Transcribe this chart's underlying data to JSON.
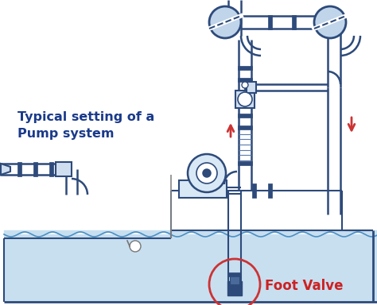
{
  "bg_color": "#ffffff",
  "pipe_color": "#2d4a7a",
  "pipe_lw": 2.5,
  "pipe_inner": "#c8d8ea",
  "water_color": "#c8dff0",
  "water_edge": "#4a90c4",
  "arrow_color": "#cc3333",
  "title_color": "#1a3a8a",
  "title": "Typical setting of a\nPump system",
  "label_foot": "Foot Valve",
  "label_color": "#cc2222",
  "fig_w": 4.74,
  "fig_h": 3.84,
  "globe_color": "#3a5a8a",
  "globe_stripe": "#c0d5ea"
}
